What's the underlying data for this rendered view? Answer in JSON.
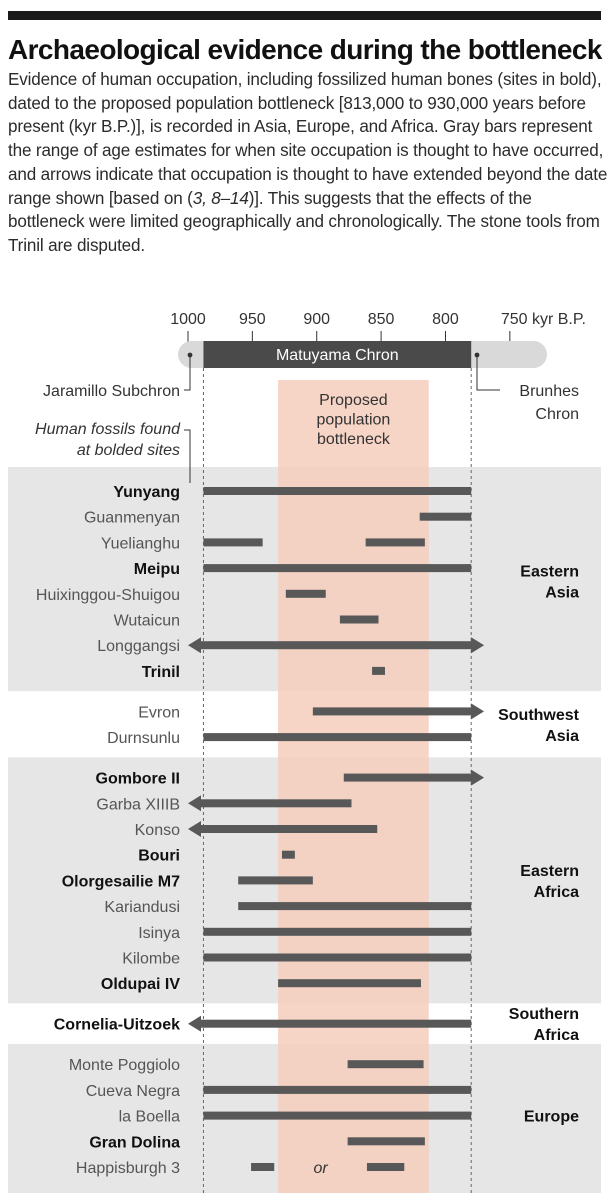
{
  "header": {
    "title": "Archaeological evidence during the bottleneck",
    "description_part1": "Evidence of human occupation, including fossilized human bones (sites in bold), dated to the proposed population bottleneck [813,000 to 930,000 years before present (kyr B.P.)], is recorded in Asia, Europe, and Africa. Gray bars represent the range of age estimates for when site occupation is thought to have occurred, and arrows indicate that occupation is thought to have extended beyond the date range shown [based on (",
    "description_refs": "3, 8–14",
    "description_part2": ")]. This suggests that the effects of the bottleneck were limited geographically and chronologically. The stone tools from Trinil are disputed."
  },
  "colors": {
    "band_gray": "#e6e6e6",
    "bar": "#585858",
    "bottleneck": "#f5ccbc",
    "chron_gray": "#d9d9d9",
    "chron_dark": "#4a4a4a"
  },
  "chart_data": {
    "type": "range-bar",
    "x_axis": {
      "ticks": [
        1000,
        950,
        900,
        850,
        800,
        750
      ],
      "tick_labels": [
        "1000",
        "950",
        "900",
        "850",
        "800",
        "750 kyr B.P."
      ],
      "range": [
        1000,
        750
      ],
      "reversed": true
    },
    "chron": {
      "label": "Matuyama Chron",
      "start": 988,
      "end": 780,
      "jaramillo_label": "Jaramillo Subchron",
      "brunhes_label_1": "Brunhes",
      "brunhes_label_2": "Chron"
    },
    "bottleneck": {
      "start": 930,
      "end": 813,
      "label_lines": [
        "Proposed",
        "population",
        "bottleneck"
      ]
    },
    "fossil_note_lines": [
      "Human fossils found",
      "at bolded sites"
    ],
    "or_label": "or",
    "regions": [
      {
        "label_lines": [
          "Eastern",
          "Asia"
        ],
        "shaded": true,
        "sites": [
          {
            "name": "Yunyang",
            "bold": true,
            "bars": [
              {
                "start": 988,
                "end": 780
              }
            ]
          },
          {
            "name": "Guanmenyan",
            "bold": false,
            "bars": [
              {
                "start": 820,
                "end": 780
              }
            ]
          },
          {
            "name": "Yuelianghu",
            "bold": false,
            "bars": [
              {
                "start": 988,
                "end": 942
              },
              {
                "start": 862,
                "end": 816
              }
            ]
          },
          {
            "name": "Meipu",
            "bold": true,
            "bars": [
              {
                "start": 988,
                "end": 780
              }
            ]
          },
          {
            "name": "Huixinggou-Shuigou",
            "bold": false,
            "bars": [
              {
                "start": 924,
                "end": 893
              }
            ]
          },
          {
            "name": "Wutaicun",
            "bold": false,
            "bars": [
              {
                "start": 882,
                "end": 852
              }
            ]
          },
          {
            "name": "Longgangsi",
            "bold": false,
            "bars": [
              {
                "start": 1000,
                "end": 770,
                "arrow_left": true,
                "arrow_right": true
              }
            ]
          },
          {
            "name": "Trinil",
            "bold": true,
            "bars": [
              {
                "start": 857,
                "end": 847
              }
            ]
          }
        ]
      },
      {
        "label_lines": [
          "Southwest",
          "Asia"
        ],
        "shaded": false,
        "sites": [
          {
            "name": "Evron",
            "bold": false,
            "bars": [
              {
                "start": 903,
                "end": 770,
                "arrow_right": true
              }
            ]
          },
          {
            "name": "Durnsunlu",
            "bold": false,
            "bars": [
              {
                "start": 988,
                "end": 780
              }
            ]
          }
        ]
      },
      {
        "label_lines": [
          "Eastern",
          "Africa"
        ],
        "shaded": true,
        "sites": [
          {
            "name": "Gombore II",
            "bold": true,
            "bars": [
              {
                "start": 879,
                "end": 770,
                "arrow_right": true
              }
            ]
          },
          {
            "name": "Garba XIIIB",
            "bold": false,
            "bars": [
              {
                "start": 1000,
                "end": 873,
                "arrow_left": true
              }
            ]
          },
          {
            "name": "Konso",
            "bold": false,
            "bars": [
              {
                "start": 1000,
                "end": 853,
                "arrow_left": true
              }
            ]
          },
          {
            "name": "Bouri",
            "bold": true,
            "bars": [
              {
                "start": 927,
                "end": 917
              }
            ]
          },
          {
            "name": "Olorgesailie M7",
            "bold": true,
            "bars": [
              {
                "start": 961,
                "end": 903
              }
            ]
          },
          {
            "name": "Kariandusi",
            "bold": false,
            "bars": [
              {
                "start": 961,
                "end": 780
              }
            ]
          },
          {
            "name": "Isinya",
            "bold": false,
            "bars": [
              {
                "start": 988,
                "end": 780
              }
            ]
          },
          {
            "name": "Kilombe",
            "bold": false,
            "bars": [
              {
                "start": 988,
                "end": 780
              }
            ]
          },
          {
            "name": "Oldupai IV",
            "bold": true,
            "bars": [
              {
                "start": 930,
                "end": 819
              }
            ]
          }
        ]
      },
      {
        "label_lines": [
          "Southern",
          "Africa"
        ],
        "shaded": false,
        "sites": [
          {
            "name": "Cornelia-Uitzoek",
            "bold": true,
            "bars": [
              {
                "start": 1000,
                "end": 780,
                "arrow_left": true
              }
            ]
          }
        ]
      },
      {
        "label_lines": [
          "Europe"
        ],
        "shaded": true,
        "sites": [
          {
            "name": "Monte Poggiolo",
            "bold": false,
            "bars": [
              {
                "start": 876,
                "end": 817
              }
            ]
          },
          {
            "name": "Cueva Negra",
            "bold": false,
            "bars": [
              {
                "start": 988,
                "end": 780
              }
            ]
          },
          {
            "name": "la Boella",
            "bold": false,
            "bars": [
              {
                "start": 988,
                "end": 780
              }
            ]
          },
          {
            "name": "Gran Dolina",
            "bold": true,
            "bars": [
              {
                "start": 876,
                "end": 816
              }
            ]
          },
          {
            "name": "Happisburgh 3",
            "bold": false,
            "bars": [
              {
                "start": 951,
                "end": 933
              },
              {
                "start": 861,
                "end": 832
              }
            ],
            "or_between": true
          }
        ]
      }
    ]
  }
}
